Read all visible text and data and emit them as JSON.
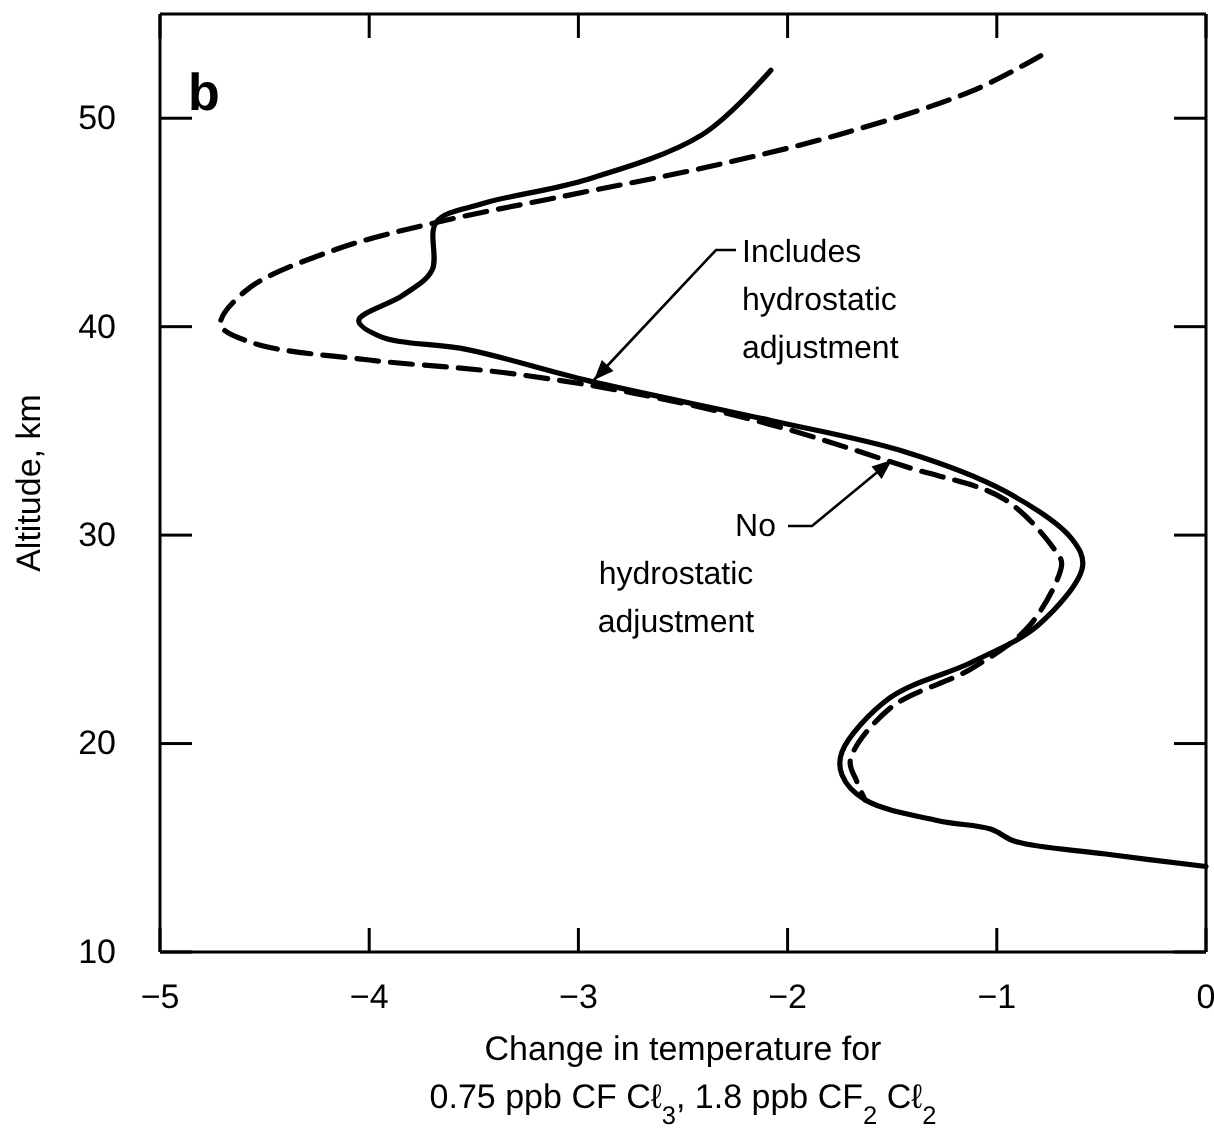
{
  "chart_data": {
    "type": "line",
    "xlabel": "Change in temperature for\n0.75 ppb CF Cℓ$_{3}$, 1.8 ppb CF$_{2}$ Cℓ$_{2}$",
    "ylabel": "Altitude, km",
    "annotations": [
      "b"
    ],
    "xlim": [
      -5,
      0
    ],
    "xticks": [
      -5,
      -4,
      -3,
      -2,
      -1,
      0
    ],
    "ylim": [
      10,
      55
    ],
    "yticks": [
      10,
      20,
      30,
      40,
      50
    ],
    "grid": false,
    "series": [
      {
        "name": "Includes hydrostatic adjustment",
        "color": "#000000",
        "line_style": "solid",
        "x": [
          -2.08,
          -2.41,
          -2.98,
          -3.46,
          -3.68,
          -3.7,
          -3.84,
          -4.05,
          -3.94,
          -3.53,
          -2.95,
          -2.08,
          -1.44,
          -0.96,
          -0.64,
          -0.59,
          -0.8,
          -1.12,
          -1.51,
          -1.74,
          -1.74,
          -1.63,
          -1.28,
          -1.03,
          -0.91,
          -0.48,
          0
        ],
        "values": [
          52.3,
          49.2,
          47.0,
          45.9,
          45.0,
          42.7,
          41.5,
          40.3,
          39.5,
          38.9,
          37.4,
          35.5,
          34.0,
          32.1,
          29.8,
          28.5,
          25.7,
          23.9,
          22.2,
          19.6,
          18.5,
          17.3,
          16.3,
          15.9,
          15.3,
          14.7,
          14.1
        ]
      },
      {
        "name": "No hydrostatic adjustment",
        "color": "#000000",
        "line_style": "dashed",
        "x": [
          -0.79,
          -1.12,
          -1.76,
          -2.41,
          -3.05,
          -3.68,
          -4.16,
          -4.58,
          -4.71,
          -4.55,
          -4.0,
          -3.36,
          -2.73,
          -2.08,
          -1.44,
          -0.96,
          -0.71,
          -0.69,
          -0.84,
          -1.12,
          -1.51,
          -1.7,
          -1.67,
          -1.63
        ],
        "values": [
          53.0,
          51.3,
          49.2,
          47.6,
          46.3,
          45.0,
          43.7,
          41.8,
          40.1,
          39.2,
          38.4,
          37.8,
          36.8,
          35.3,
          33.3,
          31.7,
          29.1,
          28.6,
          25.7,
          23.6,
          21.7,
          19.2,
          18.2,
          17.3
        ]
      }
    ]
  }
}
